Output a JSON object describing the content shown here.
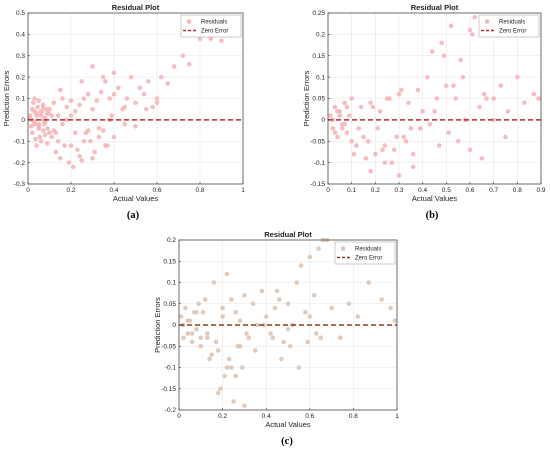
{
  "chart_data": [
    {
      "type": "scatter",
      "title": "Residual Plot",
      "xlabel": "Actual Values",
      "ylabel": "Prediction Errors",
      "caption": "(a)",
      "xlim": [
        0,
        1
      ],
      "ylim": [
        -0.3,
        0.5
      ],
      "xticks": [
        "0",
        "0.2",
        "0.4",
        "0.6",
        "0.8",
        "1"
      ],
      "yticks": [
        "-0.3",
        "-0.2",
        "-0.1",
        "0",
        "0.1",
        "0.2",
        "0.3",
        "0.4",
        "0.5"
      ],
      "grid": true,
      "legend_position": "top-right",
      "series": [
        {
          "name": "Residuals",
          "color": "#f4b6b8",
          "x": [
            0.01,
            0.015,
            0.02,
            0.02,
            0.025,
            0.03,
            0.03,
            0.035,
            0.04,
            0.04,
            0.045,
            0.05,
            0.05,
            0.055,
            0.06,
            0.06,
            0.065,
            0.07,
            0.07,
            0.075,
            0.08,
            0.08,
            0.085,
            0.09,
            0.095,
            0.1,
            0.01,
            0.02,
            0.03,
            0.04,
            0.05,
            0.06,
            0.07,
            0.08,
            0.09,
            0.1,
            0.11,
            0.12,
            0.13,
            0.14,
            0.15,
            0.16,
            0.17,
            0.18,
            0.19,
            0.2,
            0.21,
            0.22,
            0.23,
            0.24,
            0.25,
            0.26,
            0.27,
            0.28,
            0.29,
            0.3,
            0.31,
            0.32,
            0.33,
            0.34,
            0.35,
            0.36,
            0.37,
            0.38,
            0.39,
            0.4,
            0.42,
            0.44,
            0.46,
            0.48,
            0.5,
            0.52,
            0.54,
            0.56,
            0.58,
            0.6,
            0.62,
            0.65,
            0.68,
            0.72,
            0.75,
            0.8,
            0.85,
            0.9,
            0.97,
            0.12,
            0.14,
            0.16,
            0.18,
            0.2,
            0.22,
            0.24,
            0.26,
            0.28,
            0.3,
            0.33,
            0.36,
            0.38,
            0.4,
            0.45,
            0.5,
            0.55,
            0.6,
            0.15,
            0.2,
            0.25,
            0.3,
            0.35,
            0.4,
            0.45,
            0.03,
            0.05,
            0.07,
            0.09,
            0.11,
            0.13
          ],
          "y": [
            0.02,
            -0.03,
            0.05,
            -0.06,
            0.08,
            -0.01,
            0.1,
            -0.09,
            0.03,
            -0.12,
            0.06,
            -0.04,
            0.09,
            -0.08,
            0.02,
            -0.1,
            0.04,
            -0.05,
            0.07,
            -0.02,
            0.01,
            -0.07,
            0.05,
            -0.11,
            0.03,
            -0.06,
            0.01,
            0.0,
            -0.02,
            0.02,
            -0.03,
            0.04,
            0.0,
            -0.01,
            0.03,
            0.05,
            -0.08,
            0.08,
            -0.15,
            0.02,
            -0.18,
            0.1,
            -0.12,
            0.06,
            -0.2,
            0.09,
            -0.22,
            0.04,
            -0.14,
            0.07,
            -0.19,
            0.1,
            -0.06,
            0.12,
            -0.1,
            0.05,
            -0.15,
            0.09,
            -0.08,
            0.13,
            -0.05,
            0.18,
            -0.12,
            0.1,
            0.02,
            0.22,
            0.15,
            0.05,
            0.1,
            0.2,
            0.08,
            0.15,
            0.12,
            0.18,
            0.06,
            0.1,
            0.2,
            0.17,
            0.25,
            0.3,
            0.26,
            0.38,
            0.38,
            0.37,
            0.4,
            -0.05,
            -0.1,
            -0.02,
            0.0,
            -0.12,
            -0.06,
            -0.17,
            -0.1,
            -0.05,
            -0.18,
            -0.04,
            -0.12,
            0.0,
            -0.08,
            -0.02,
            -0.03,
            0.05,
            0.08,
            0.14,
            0.02,
            0.18,
            0.25,
            0.2,
            0.12,
            0.06,
            0.04,
            -0.02,
            0.06,
            -0.04,
            0.02,
            -0.06
          ]
        },
        {
          "name": "Zero Error",
          "color": "#c0262d",
          "x": [
            0,
            1
          ],
          "y": [
            0,
            0
          ]
        }
      ]
    },
    {
      "type": "scatter",
      "title": "Residual Plot",
      "xlabel": "Actual Values",
      "ylabel": "Prediction Errors",
      "caption": "(b)",
      "xlim": [
        0,
        0.9
      ],
      "ylim": [
        -0.15,
        0.25
      ],
      "xticks": [
        "0",
        "0.1",
        "0.2",
        "0.3",
        "0.4",
        "0.5",
        "0.6",
        "0.7",
        "0.8",
        "0.9"
      ],
      "yticks": [
        "-0.15",
        "-0.1",
        "-0.05",
        "0",
        "0.05",
        "0.1",
        "0.15",
        "0.2",
        "0.25"
      ],
      "grid": true,
      "legend_position": "top-right",
      "series": [
        {
          "name": "Residuals",
          "color": "#f4b6b8",
          "x": [
            0.01,
            0.02,
            0.03,
            0.04,
            0.05,
            0.06,
            0.07,
            0.08,
            0.09,
            0.1,
            0.02,
            0.04,
            0.06,
            0.08,
            0.1,
            0.03,
            0.05,
            0.07,
            0.12,
            0.14,
            0.16,
            0.18,
            0.2,
            0.22,
            0.24,
            0.26,
            0.28,
            0.3,
            0.32,
            0.34,
            0.36,
            0.38,
            0.4,
            0.42,
            0.44,
            0.46,
            0.48,
            0.5,
            0.52,
            0.54,
            0.56,
            0.58,
            0.6,
            0.62,
            0.64,
            0.66,
            0.7,
            0.73,
            0.76,
            0.8,
            0.83,
            0.87,
            0.89,
            0.15,
            0.18,
            0.21,
            0.24,
            0.27,
            0.3,
            0.33,
            0.36,
            0.39,
            0.43,
            0.47,
            0.51,
            0.55,
            0.6,
            0.65,
            0.7,
            0.75,
            0.11,
            0.13,
            0.17,
            0.19,
            0.23,
            0.25,
            0.29,
            0.31,
            0.35,
            0.45,
            0.49,
            0.53,
            0.57,
            0.61,
            0.67
          ],
          "y": [
            0.01,
            -0.02,
            0.03,
            -0.04,
            0.02,
            -0.01,
            0.04,
            -0.03,
            0.01,
            -0.05,
            0.0,
            0.02,
            -0.02,
            0.03,
            0.05,
            -0.03,
            0.01,
            -0.01,
            -0.06,
            0.03,
            -0.09,
            0.04,
            -0.08,
            0.02,
            -0.1,
            0.05,
            -0.07,
            0.06,
            -0.04,
            0.04,
            -0.11,
            0.07,
            0.02,
            0.1,
            0.16,
            0.05,
            0.18,
            0.08,
            0.22,
            0.05,
            0.14,
            0.0,
            0.21,
            0.24,
            0.03,
            0.06,
            0.05,
            0.08,
            0.02,
            0.1,
            0.04,
            0.06,
            0.05,
            -0.04,
            -0.12,
            -0.02,
            -0.06,
            -0.1,
            -0.13,
            -0.05,
            -0.08,
            -0.02,
            -0.01,
            -0.06,
            -0.03,
            -0.05,
            -0.07,
            -0.09,
            0.0,
            -0.04,
            -0.08,
            -0.02,
            -0.05,
            0.03,
            -0.07,
            0.05,
            -0.04,
            0.07,
            -0.02,
            0.02,
            0.15,
            0.08,
            0.1,
            0.2,
            0.05
          ]
        },
        {
          "name": "Zero Error",
          "color": "#c0262d",
          "x": [
            0,
            0.9
          ],
          "y": [
            0,
            0
          ]
        }
      ]
    },
    {
      "type": "scatter",
      "title": "Residual Plot",
      "xlabel": "Actual Values",
      "ylabel": "Prediction Errors",
      "caption": "(c)",
      "xlim": [
        0,
        1
      ],
      "ylim": [
        -0.2,
        0.2
      ],
      "xticks": [
        "0",
        "0.2",
        "0.4",
        "0.6",
        "0.8",
        "1"
      ],
      "yticks": [
        "-0.2",
        "-0.15",
        "-0.1",
        "-0.05",
        "0",
        "0.05",
        "0.1",
        "0.15",
        "0.2"
      ],
      "grid": true,
      "legend_position": "top-right",
      "series": [
        {
          "name": "Residuals",
          "color": "#dcc5b4",
          "x": [
            0.01,
            0.02,
            0.03,
            0.04,
            0.05,
            0.06,
            0.07,
            0.08,
            0.09,
            0.1,
            0.02,
            0.04,
            0.06,
            0.08,
            0.1,
            0.12,
            0.14,
            0.16,
            0.18,
            0.2,
            0.22,
            0.24,
            0.26,
            0.28,
            0.3,
            0.32,
            0.34,
            0.36,
            0.38,
            0.4,
            0.42,
            0.44,
            0.46,
            0.48,
            0.5,
            0.52,
            0.54,
            0.56,
            0.58,
            0.6,
            0.62,
            0.64,
            0.66,
            0.68,
            0.7,
            0.74,
            0.78,
            0.82,
            0.87,
            0.93,
            0.97,
            0.99,
            0.13,
            0.15,
            0.17,
            0.19,
            0.21,
            0.23,
            0.25,
            0.27,
            0.29,
            0.31,
            0.35,
            0.39,
            0.43,
            0.47,
            0.51,
            0.55,
            0.59,
            0.63,
            0.11,
            0.13,
            0.18,
            0.2,
            0.22,
            0.24,
            0.26,
            0.28,
            0.3,
            0.45,
            0.5,
            0.6,
            0.65
          ],
          "y": [
            0.02,
            -0.03,
            0.04,
            -0.02,
            0.01,
            -0.04,
            0.03,
            -0.01,
            0.05,
            -0.03,
            0.0,
            0.01,
            -0.02,
            0.03,
            -0.05,
            0.06,
            -0.08,
            0.1,
            -0.06,
            0.04,
            0.12,
            -0.1,
            0.03,
            -0.05,
            0.07,
            -0.03,
            0.05,
            0.0,
            0.08,
            0.02,
            -0.02,
            0.04,
            0.06,
            -0.04,
            0.05,
            0.0,
            0.1,
            0.14,
            0.03,
            0.16,
            0.07,
            0.18,
            0.2,
            0.2,
            0.04,
            -0.03,
            0.05,
            0.02,
            0.1,
            0.06,
            0.04,
            0.01,
            -0.02,
            -0.07,
            -0.04,
            -0.15,
            -0.12,
            -0.08,
            -0.18,
            -0.05,
            -0.1,
            -0.02,
            -0.06,
            0.0,
            -0.03,
            -0.08,
            -0.05,
            -0.1,
            -0.04,
            -0.02,
            0.03,
            -0.03,
            -0.16,
            0.02,
            -0.1,
            0.06,
            -0.12,
            0.01,
            -0.19,
            0.08,
            -0.01,
            0.02,
            -0.03
          ]
        },
        {
          "name": "Zero Error",
          "color": "#8b3a1f",
          "x": [
            0,
            1
          ],
          "y": [
            0,
            0
          ]
        }
      ]
    }
  ]
}
